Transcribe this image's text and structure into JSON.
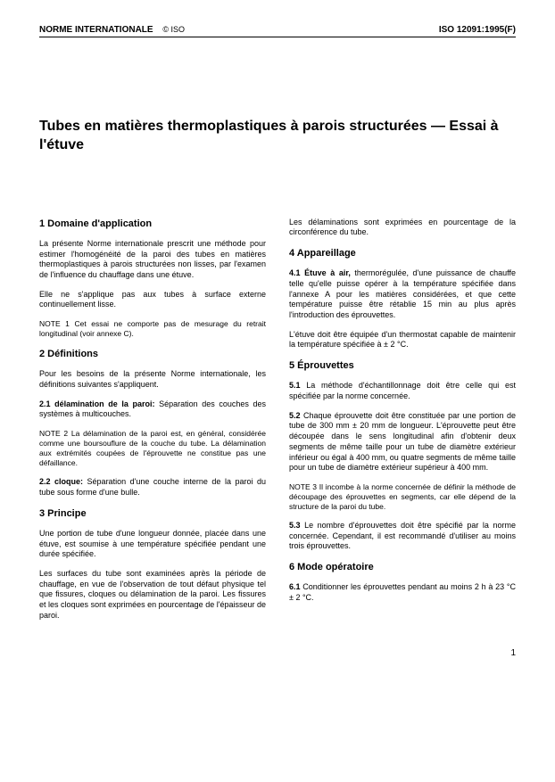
{
  "header": {
    "left_label": "NORME INTERNATIONALE",
    "copyright": "© ISO",
    "right_label": "ISO 12091:1995(F)"
  },
  "title": "Tubes en matières thermoplastiques à parois structurées — Essai à l'étuve",
  "left": {
    "s1_h": "1   Domaine d'application",
    "s1_p1": "La présente Norme internationale prescrit une méthode pour estimer l'homogénéité de la paroi des tubes en matières thermoplastiques à parois structurées non lisses, par l'examen de l'influence du chauffage dans une étuve.",
    "s1_p2": "Elle ne s'applique pas aux tubes à surface externe continuellement lisse.",
    "s1_note": "NOTE 1   Cet essai ne comporte pas de mesurage du retrait longitudinal (voir annexe C).",
    "s2_h": "2   Définitions",
    "s2_p1": "Pour les besoins de la présente Norme internationale, les définitions suivantes s'appliquent.",
    "s2_c21_num": "2.1   délamination de la paroi:",
    "s2_c21_txt": " Séparation des couches des systèmes à multicouches.",
    "s2_note": "NOTE 2   La délamination de la paroi est, en général, considérée comme une boursouflure de la couche du tube. La délamination aux extrémités coupées de l'éprouvette ne constitue pas une défaillance.",
    "s2_c22_num": "2.2   cloque:",
    "s2_c22_txt": " Séparation d'une couche interne de la paroi du tube sous forme d'une bulle.",
    "s3_h": "3   Principe",
    "s3_p1": "Une portion de tube d'une longueur donnée, placée dans une étuve, est soumise à une température spécifiée pendant une durée spécifiée.",
    "s3_p2": "Les surfaces du tube sont examinées après la période de chauffage, en vue de l'observation de tout défaut physique tel que fissures, cloques ou délamination de la paroi. Les fissures et les cloques sont exprimées en pourcentage de l'épaisseur de paroi."
  },
  "right": {
    "r_top": "Les délaminations sont exprimées en pourcentage de la circonférence du tube.",
    "s4_h": "4   Appareillage",
    "s4_c41_num": "4.1   Étuve à air,",
    "s4_c41_txt": " thermorégulée, d'une puissance de chauffe telle qu'elle puisse opérer à la température spécifiée dans l'annexe A pour les matières considérées, et que cette température puisse être rétablie 15 min au plus après l'introduction des éprouvettes.",
    "s4_p2": "L'étuve doit être équipée d'un thermostat capable de maintenir la température spécifiée à ± 2 °C.",
    "s5_h": "5   Éprouvettes",
    "s5_c51_num": "5.1",
    "s5_c51_txt": "   La méthode d'échantillonnage doit être celle qui est spécifiée par la norme concernée.",
    "s5_c52_num": "5.2",
    "s5_c52_txt": "   Chaque éprouvette doit être constituée par une portion de tube de 300 mm ± 20 mm de longueur. L'éprouvette peut être découpée dans le sens longitudinal afin d'obtenir deux segments de même taille pour un tube de diamètre extérieur inférieur ou égal à 400 mm, ou quatre segments de même taille pour un tube de diamètre extérieur supérieur à 400 mm.",
    "s5_note": "NOTE 3   Il incombe à la norme concernée de définir la méthode de découpage des éprouvettes en segments, car elle dépend de la structure de la paroi du tube.",
    "s5_c53_num": "5.3",
    "s5_c53_txt": "   Le nombre d'éprouvettes doit être spécifié par la norme concernée. Cependant, il est recommandé d'utiliser au moins trois éprouvettes.",
    "s6_h": "6   Mode opératoire",
    "s6_c61_num": "6.1",
    "s6_c61_txt": "   Conditionner les éprouvettes pendant au moins 2 h à 23 °C ± 2 °C."
  },
  "pagenum": "1"
}
